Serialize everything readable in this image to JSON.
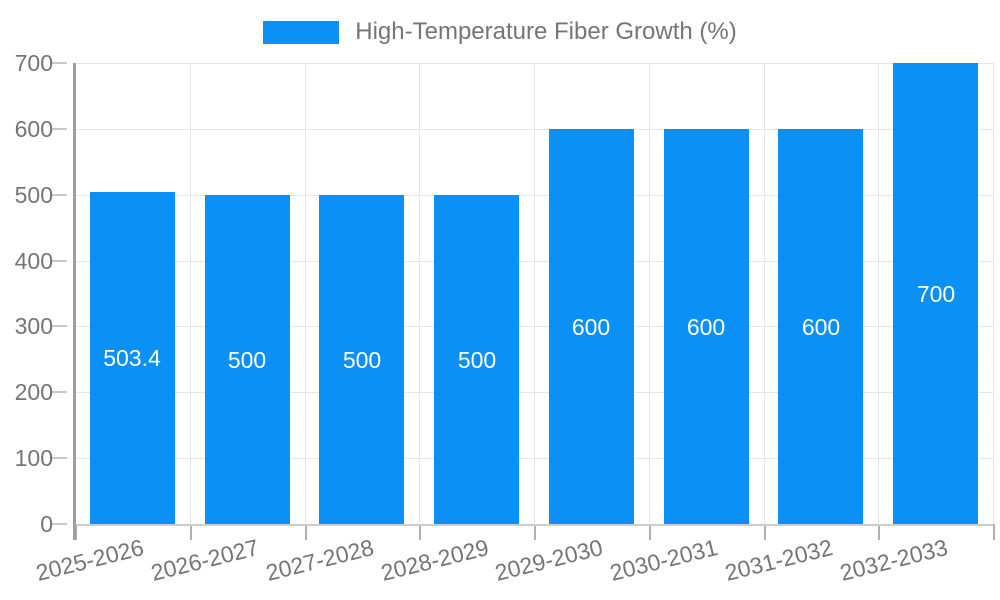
{
  "legend": {
    "label": "High-Temperature Fiber Growth (%)"
  },
  "colors": {
    "bar": "#0b90f6",
    "axis_text": "#757575",
    "bar_label": "#ffffff",
    "gridline": "#e6e6e6",
    "axis_line": "#9e9e9e",
    "y_tick": "#c9c9c9",
    "x_tick": "#b0b0b0",
    "bottom_axis": "#cccccc",
    "background": "#ffffff"
  },
  "chart_data": {
    "type": "bar",
    "title": "",
    "series_name": "High-Temperature Fiber Growth (%)",
    "categories": [
      "2025-2026",
      "2026-2027",
      "2027-2028",
      "2028-2029",
      "2029-2030",
      "2030-2031",
      "2031-2032",
      "2032-2033"
    ],
    "values": [
      503.4,
      500,
      500,
      500,
      600,
      600,
      600,
      700
    ],
    "value_labels": [
      "503.4",
      "500",
      "500",
      "500",
      "600",
      "600",
      "600",
      "700"
    ],
    "xlabel": "",
    "ylabel": "",
    "ylim": [
      0,
      700
    ],
    "yticks": [
      0,
      100,
      200,
      300,
      400,
      500,
      600,
      700
    ],
    "grid": true,
    "legend_position": "top",
    "bar_label_position": "inside-center",
    "x_label_rotation_deg": -14
  }
}
